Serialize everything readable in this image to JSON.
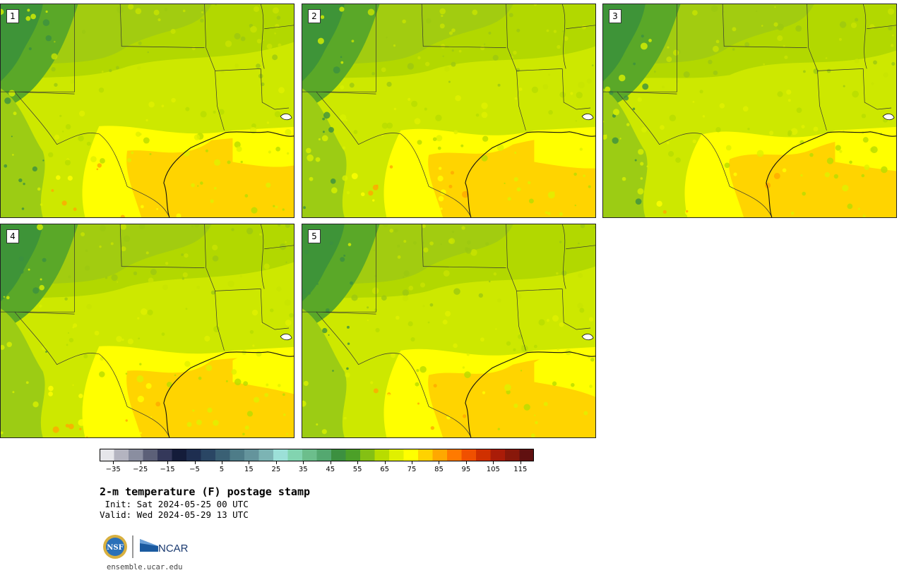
{
  "panels": [
    {
      "label": "1",
      "variant": 0
    },
    {
      "label": "2",
      "variant": 1
    },
    {
      "label": "3",
      "variant": 2
    },
    {
      "label": "4",
      "variant": 3
    },
    {
      "label": "5",
      "variant": 4
    }
  ],
  "colorbar": {
    "colors": [
      "#e6e6ea",
      "#b4b4c0",
      "#8a8ea0",
      "#5c6078",
      "#34385a",
      "#141c3a",
      "#1e2e50",
      "#2a4664",
      "#3a6074",
      "#4e7c88",
      "#64949c",
      "#7cb4b4",
      "#9ce0d8",
      "#82d4b0",
      "#6cbe8c",
      "#54a870",
      "#3c9040",
      "#4ca028",
      "#84c014",
      "#b8dc00",
      "#e0f000",
      "#ffff00",
      "#ffd200",
      "#ffa800",
      "#ff7a00",
      "#f05000",
      "#d03000",
      "#aa1c08",
      "#88180a",
      "#601010"
    ],
    "tick_labels": [
      "−35",
      "−25",
      "−15",
      "−5",
      "5",
      "15",
      "25",
      "35",
      "45",
      "55",
      "65",
      "75",
      "85",
      "95",
      "105",
      "115"
    ],
    "min": -40,
    "max": 120
  },
  "title": "2-m temperature (F) postage stamp",
  "init_line": " Init: Sat 2024-05-25 00 UTC",
  "valid_line": "Valid: Wed 2024-05-29 13 UTC",
  "logos": {
    "nsf": "NSF",
    "ncar": "NCAR"
  },
  "website": "ensemble.ucar.edu"
}
